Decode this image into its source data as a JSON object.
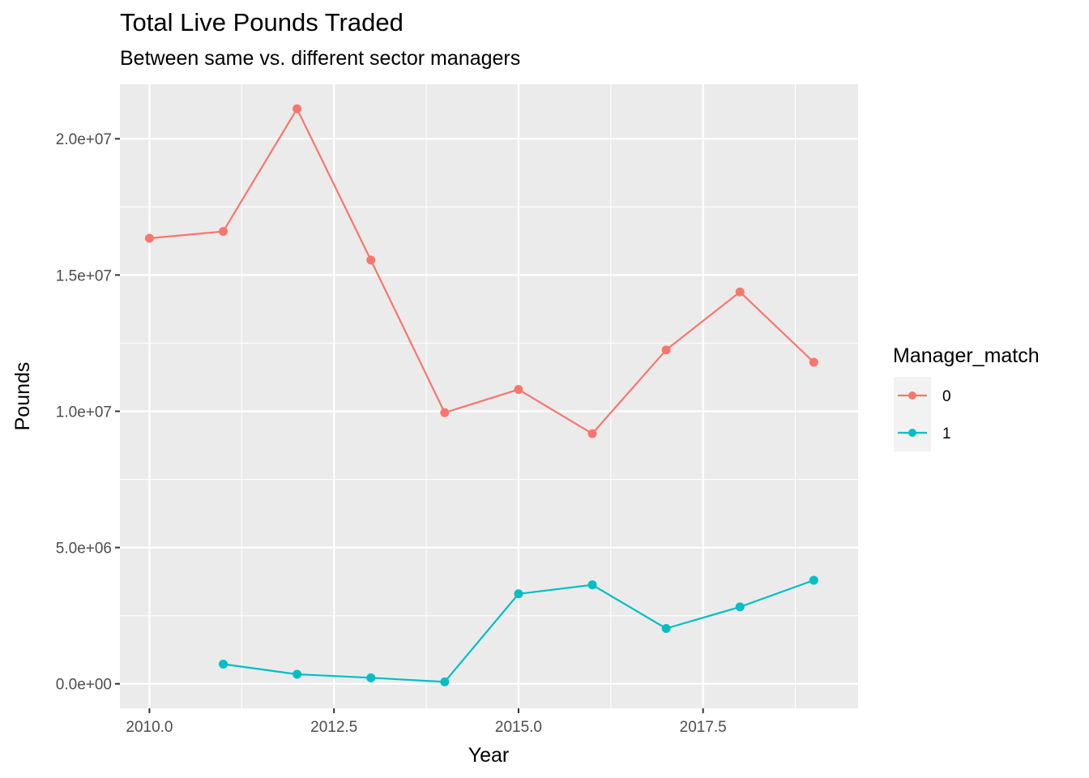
{
  "chart_data": {
    "type": "line",
    "title": "Total Live Pounds Traded",
    "subtitle": "Between same vs. different sector managers",
    "xlabel": "Year",
    "ylabel": "Pounds",
    "xlim": [
      2009.6,
      2019.6
    ],
    "ylim": [
      -900000,
      22000000
    ],
    "x_ticks": [
      2010.0,
      2012.5,
      2015.0,
      2017.5
    ],
    "x_tick_labels": [
      "2010.0",
      "2012.5",
      "2015.0",
      "2017.5"
    ],
    "y_ticks": [
      0,
      5000000,
      10000000,
      15000000,
      20000000
    ],
    "y_tick_labels": [
      "0.0e+00",
      "5.0e+06",
      "1.0e+07",
      "1.5e+07",
      "2.0e+07"
    ],
    "grid": true,
    "legend": {
      "title": "Manager_match",
      "placement": "right"
    },
    "series": [
      {
        "name": "0",
        "color": "#F8766D",
        "x": [
          2010,
          2011,
          2012,
          2013,
          2014,
          2015,
          2016,
          2017,
          2018,
          2019
        ],
        "values": [
          16350000,
          16600000,
          21100000,
          15550000,
          9950000,
          10800000,
          9180000,
          12250000,
          14380000,
          11800000
        ]
      },
      {
        "name": "1",
        "color": "#00BFC4",
        "x": [
          2011,
          2012,
          2013,
          2014,
          2015,
          2016,
          2017,
          2018,
          2019
        ],
        "values": [
          720000,
          350000,
          220000,
          70000,
          3300000,
          3630000,
          2030000,
          2820000,
          3800000
        ]
      }
    ]
  }
}
